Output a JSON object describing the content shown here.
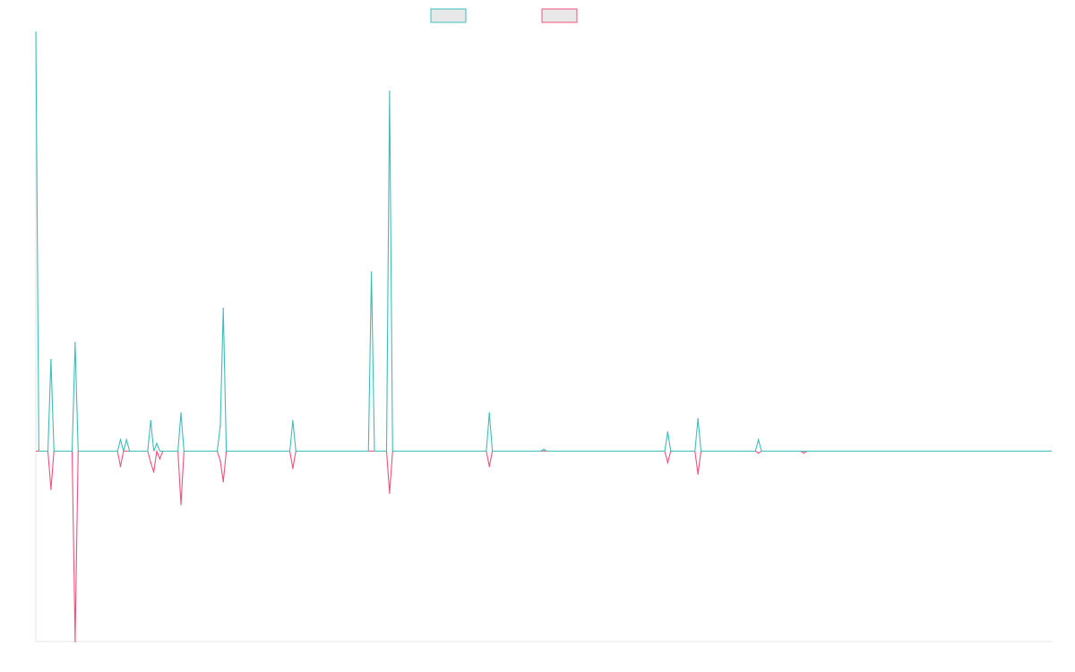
{
  "chart_data": {
    "type": "line",
    "title": "",
    "xlabel": "",
    "ylabel": "",
    "legend": {
      "placement": "top-center",
      "entries": [
        {
          "color_key": "teal"
        },
        {
          "color_key": "pink"
        }
      ]
    },
    "colors": {
      "teal": "#3dbdb8",
      "pink": "#f0517a",
      "legend_fill": "#e8e8e8",
      "axis": "#e6e6e6"
    },
    "ylim": [
      -1,
      2.2
    ],
    "x_count": 337,
    "grid": false,
    "series": [
      {
        "color_key": "teal",
        "points": [
          [
            0,
            2.2
          ],
          [
            1,
            0
          ],
          [
            4,
            0
          ],
          [
            5,
            0.48
          ],
          [
            6,
            0
          ],
          [
            12,
            0
          ],
          [
            13,
            0.57
          ],
          [
            14,
            0
          ],
          [
            27,
            0
          ],
          [
            28,
            0.06
          ],
          [
            29,
            0
          ],
          [
            30,
            0.06
          ],
          [
            31,
            0
          ],
          [
            37,
            0
          ],
          [
            38,
            0.16
          ],
          [
            39,
            0
          ],
          [
            40,
            0.04
          ],
          [
            41,
            0
          ],
          [
            47,
            0
          ],
          [
            48,
            0.2
          ],
          [
            49,
            0
          ],
          [
            60,
            0
          ],
          [
            61,
            0.13
          ],
          [
            62,
            0.75
          ],
          [
            63,
            0
          ],
          [
            84,
            0
          ],
          [
            85,
            0.16
          ],
          [
            86,
            0
          ],
          [
            110,
            0
          ],
          [
            111,
            0.94
          ],
          [
            112,
            0
          ],
          [
            116,
            0
          ],
          [
            117,
            1.89
          ],
          [
            118,
            0
          ],
          [
            149,
            0
          ],
          [
            150,
            0.2
          ],
          [
            151,
            0
          ],
          [
            167,
            0
          ],
          [
            168,
            0.01
          ],
          [
            169,
            0
          ],
          [
            208,
            0
          ],
          [
            209,
            0.1
          ],
          [
            210,
            0
          ],
          [
            218,
            0
          ],
          [
            219,
            0.17
          ],
          [
            220,
            0
          ],
          [
            238,
            0
          ],
          [
            239,
            0.06
          ],
          [
            240,
            0
          ],
          [
            336,
            0
          ]
        ]
      },
      {
        "color_key": "pink",
        "points": [
          [
            0,
            0
          ],
          [
            4,
            0
          ],
          [
            5,
            -0.2
          ],
          [
            6,
            0
          ],
          [
            12,
            0
          ],
          [
            13,
            -1
          ],
          [
            14,
            0
          ],
          [
            27,
            0
          ],
          [
            28,
            -0.08
          ],
          [
            29,
            0
          ],
          [
            37,
            0
          ],
          [
            38,
            -0.06
          ],
          [
            39,
            -0.11
          ],
          [
            40,
            0
          ],
          [
            41,
            -0.04
          ],
          [
            42,
            0
          ],
          [
            47,
            0
          ],
          [
            48,
            -0.28
          ],
          [
            49,
            0
          ],
          [
            60,
            0
          ],
          [
            61,
            -0.05
          ],
          [
            62,
            -0.16
          ],
          [
            63,
            0
          ],
          [
            84,
            0
          ],
          [
            85,
            -0.09
          ],
          [
            86,
            0
          ],
          [
            116,
            0
          ],
          [
            117,
            -0.22
          ],
          [
            118,
            0
          ],
          [
            149,
            0
          ],
          [
            150,
            -0.08
          ],
          [
            151,
            0
          ],
          [
            208,
            0
          ],
          [
            209,
            -0.06
          ],
          [
            210,
            0
          ],
          [
            218,
            0
          ],
          [
            219,
            -0.12
          ],
          [
            220,
            0
          ],
          [
            238,
            0
          ],
          [
            239,
            -0.01
          ],
          [
            240,
            0
          ],
          [
            253,
            0
          ],
          [
            254,
            -0.01
          ],
          [
            255,
            0
          ],
          [
            336,
            0
          ]
        ]
      }
    ]
  }
}
